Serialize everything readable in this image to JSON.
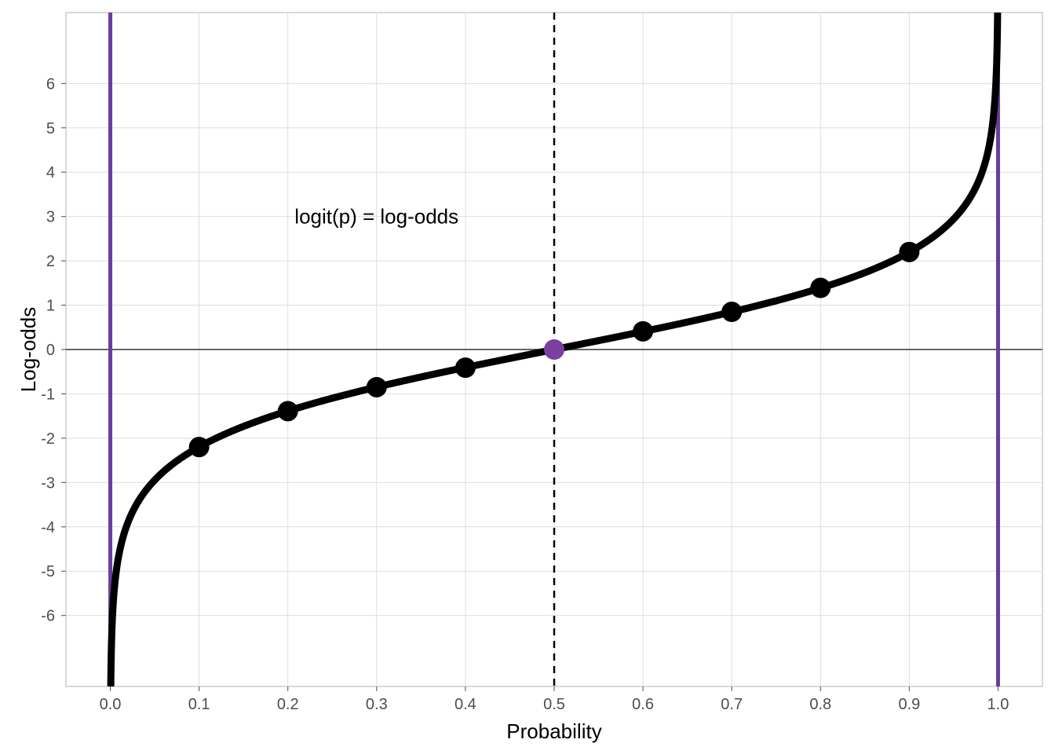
{
  "chart_data": {
    "type": "line",
    "xlabel": "Probability",
    "ylabel": "Log-odds",
    "xlim": [
      -0.05,
      1.05
    ],
    "ylim": [
      -7.6,
      7.6
    ],
    "x_ticks": [
      "0.0",
      "0.1",
      "0.2",
      "0.3",
      "0.4",
      "0.5",
      "0.6",
      "0.7",
      "0.8",
      "0.9",
      "1.0"
    ],
    "y_ticks": [
      "-6",
      "-5",
      "-4",
      "-3",
      "-2",
      "-1",
      "0",
      "1",
      "2",
      "3",
      "4",
      "5",
      "6"
    ],
    "grid": true,
    "annotation": {
      "text": "logit(p) = log-odds",
      "x": 0.2,
      "y": 3
    },
    "curve": {
      "function": "logit",
      "x_range": [
        0.0005,
        0.9995
      ],
      "color": "#000000"
    },
    "points": {
      "x": [
        0.1,
        0.2,
        0.3,
        0.4,
        0.5,
        0.6,
        0.7,
        0.8,
        0.9
      ],
      "y": [
        -2.2,
        -1.39,
        -0.85,
        -0.41,
        0,
        0.41,
        0.85,
        1.39,
        2.2
      ],
      "colors": [
        "#000000",
        "#000000",
        "#000000",
        "#000000",
        "#7b3fa0",
        "#000000",
        "#000000",
        "#000000",
        "#000000"
      ]
    },
    "reference_lines": {
      "vertical_solid": {
        "x": [
          0,
          1
        ],
        "color": "#6a3d9a"
      },
      "vertical_dashed": {
        "x": 0.5,
        "color": "#000000"
      },
      "horizontal": {
        "y": 0,
        "color": "#666666"
      }
    }
  }
}
